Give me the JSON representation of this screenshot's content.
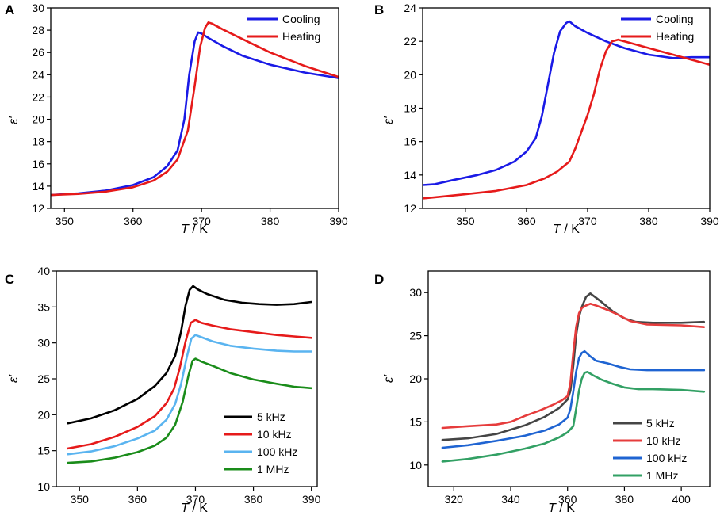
{
  "chart_data": [
    {
      "type": "line",
      "panel": "A",
      "xlabel": "T / K",
      "ylabel": "ε′",
      "xlim": [
        348,
        390
      ],
      "ylim": [
        12,
        30
      ],
      "xticks": [
        350,
        360,
        370,
        380,
        390
      ],
      "yticks": [
        12,
        14,
        16,
        18,
        20,
        22,
        24,
        26,
        28,
        30
      ],
      "legend_position": "top-right",
      "series": [
        {
          "name": "Cooling",
          "color": "#1a1ae6",
          "x": [
            348,
            352,
            356,
            360,
            363,
            365,
            366.5,
            367.5,
            368.2,
            369,
            369.5,
            370,
            371,
            373,
            376,
            380,
            385,
            390
          ],
          "y": [
            13.2,
            13.35,
            13.6,
            14.1,
            14.8,
            15.8,
            17.2,
            20,
            24,
            27,
            27.8,
            27.7,
            27.3,
            26.6,
            25.7,
            24.9,
            24.2,
            23.7
          ]
        },
        {
          "name": "Heating",
          "color": "#e61a1a",
          "x": [
            348,
            352,
            356,
            360,
            363,
            365,
            366.5,
            368,
            369,
            369.8,
            370.5,
            371,
            371.5,
            373,
            376,
            380,
            385,
            390
          ],
          "y": [
            13.2,
            13.3,
            13.5,
            13.9,
            14.5,
            15.3,
            16.4,
            19,
            23,
            26.5,
            28.2,
            28.7,
            28.6,
            28.1,
            27.2,
            26,
            24.8,
            23.8
          ]
        }
      ]
    },
    {
      "type": "line",
      "panel": "B",
      "xlabel": "T / K",
      "ylabel": "ε′",
      "xlim": [
        343,
        390
      ],
      "ylim": [
        12,
        24
      ],
      "xticks": [
        350,
        360,
        370,
        380,
        390
      ],
      "yticks": [
        12,
        14,
        16,
        18,
        20,
        22,
        24
      ],
      "legend_position": "top-right",
      "series": [
        {
          "name": "Cooling",
          "color": "#1a1ae6",
          "x": [
            343,
            345,
            348,
            352,
            355,
            358,
            360,
            361.5,
            362.5,
            363.5,
            364.5,
            365.5,
            366.5,
            367,
            368,
            370,
            373,
            376,
            380,
            384,
            387,
            390
          ],
          "y": [
            13.4,
            13.45,
            13.7,
            14.0,
            14.3,
            14.8,
            15.4,
            16.2,
            17.5,
            19.4,
            21.3,
            22.6,
            23.1,
            23.2,
            22.9,
            22.5,
            22.0,
            21.6,
            21.2,
            21.0,
            21.05,
            21.05
          ]
        },
        {
          "name": "Heating",
          "color": "#e61a1a",
          "x": [
            343,
            346,
            350,
            355,
            360,
            363,
            365,
            367,
            368,
            369,
            370,
            371,
            372,
            373,
            374,
            375,
            377,
            380,
            384,
            387,
            390
          ],
          "y": [
            12.6,
            12.7,
            12.85,
            13.05,
            13.4,
            13.8,
            14.2,
            14.8,
            15.6,
            16.6,
            17.6,
            18.8,
            20.3,
            21.4,
            22.0,
            22.1,
            21.9,
            21.6,
            21.2,
            20.9,
            20.6
          ]
        }
      ]
    },
    {
      "type": "line",
      "panel": "C",
      "xlabel": "T / K",
      "ylabel": "ε′",
      "xlim": [
        346,
        391
      ],
      "ylim": [
        10,
        40
      ],
      "xticks": [
        350,
        360,
        370,
        380,
        390
      ],
      "yticks": [
        10,
        15,
        20,
        25,
        30,
        35,
        40
      ],
      "legend_position": "bottom-right",
      "series": [
        {
          "name": "5 kHz",
          "color": "#000000",
          "x": [
            348,
            352,
            356,
            360,
            363,
            365,
            366.5,
            367.5,
            368.3,
            369,
            369.6,
            370.5,
            372,
            375,
            378,
            381,
            384,
            387,
            390
          ],
          "y": [
            18.8,
            19.5,
            20.6,
            22.2,
            24,
            25.8,
            28.2,
            31.5,
            35.2,
            37.4,
            37.9,
            37.4,
            36.8,
            36.0,
            35.6,
            35.4,
            35.3,
            35.4,
            35.7
          ]
        },
        {
          "name": "10 kHz",
          "color": "#e61a1a",
          "x": [
            348,
            352,
            356,
            360,
            363,
            365,
            366.3,
            367.3,
            368.3,
            369.2,
            370,
            371,
            373,
            376,
            380,
            384,
            387,
            390
          ],
          "y": [
            15.3,
            15.9,
            16.9,
            18.3,
            19.8,
            21.6,
            23.6,
            26.5,
            30.2,
            32.8,
            33.2,
            32.8,
            32.4,
            31.9,
            31.5,
            31.1,
            30.9,
            30.7
          ]
        },
        {
          "name": "100 kHz",
          "color": "#5ab4f0",
          "x": [
            348,
            352,
            356,
            360,
            363,
            365,
            366.5,
            367.5,
            368.5,
            369.3,
            370,
            371,
            373,
            376,
            380,
            384,
            387,
            390
          ],
          "y": [
            14.5,
            14.9,
            15.6,
            16.7,
            17.8,
            19.3,
            21.5,
            24.2,
            28.0,
            30.6,
            31.1,
            30.8,
            30.2,
            29.6,
            29.2,
            28.9,
            28.8,
            28.8
          ]
        },
        {
          "name": "1 MHz",
          "color": "#1a8c1a",
          "x": [
            348,
            352,
            356,
            360,
            363,
            365,
            366.5,
            367.8,
            368.8,
            369.5,
            370,
            371,
            373,
            376,
            380,
            384,
            387,
            390
          ],
          "y": [
            13.3,
            13.5,
            14.0,
            14.8,
            15.7,
            16.8,
            18.6,
            21.8,
            25.5,
            27.5,
            27.8,
            27.4,
            26.8,
            25.8,
            24.9,
            24.3,
            23.9,
            23.7
          ]
        }
      ]
    },
    {
      "type": "line",
      "panel": "D",
      "xlabel": "T / K",
      "ylabel": "ε′",
      "xlim": [
        311,
        410
      ],
      "ylim": [
        7.5,
        32.5
      ],
      "xticks": [
        320,
        340,
        360,
        380,
        400
      ],
      "yticks": [
        10,
        15,
        20,
        25,
        30
      ],
      "legend_position": "bottom-right",
      "series": [
        {
          "name": "5 kHz",
          "color": "#454545",
          "x": [
            316,
            325,
            335,
            345,
            352,
            357,
            360,
            361,
            362,
            363,
            364,
            365,
            366.5,
            368,
            370,
            372,
            376,
            380,
            384,
            390,
            400,
            408
          ],
          "y": [
            12.9,
            13.1,
            13.6,
            14.6,
            15.6,
            16.6,
            17.6,
            18.6,
            21.5,
            25.0,
            27.2,
            28.3,
            29.5,
            29.9,
            29.4,
            28.9,
            27.8,
            27.0,
            26.6,
            26.5,
            26.5,
            26.6
          ]
        },
        {
          "name": "10 kHz",
          "color": "#e63c3c",
          "x": [
            316,
            325,
            335,
            340,
            345,
            350,
            355,
            358,
            360,
            361,
            362,
            363,
            364,
            365,
            366.5,
            368,
            370,
            374,
            378,
            382,
            388,
            400,
            408
          ],
          "y": [
            14.3,
            14.5,
            14.7,
            15.0,
            15.7,
            16.3,
            17.0,
            17.5,
            18.0,
            19.5,
            23.0,
            26.0,
            27.6,
            28.2,
            28.5,
            28.7,
            28.5,
            28.0,
            27.4,
            26.7,
            26.3,
            26.2,
            26.0
          ]
        },
        {
          "name": "100 kHz",
          "color": "#1f64d2",
          "x": [
            316,
            325,
            335,
            345,
            352,
            357,
            360,
            361,
            362,
            363,
            364,
            365,
            366,
            368,
            370,
            374,
            378,
            382,
            388,
            400,
            408
          ],
          "y": [
            12.0,
            12.3,
            12.8,
            13.4,
            14.0,
            14.7,
            15.5,
            16.5,
            18.5,
            20.8,
            22.4,
            23.0,
            23.2,
            22.6,
            22.1,
            21.8,
            21.4,
            21.1,
            21.0,
            21.0,
            21.0
          ]
        },
        {
          "name": "1 MHz",
          "color": "#32a064",
          "x": [
            316,
            325,
            335,
            345,
            352,
            357,
            360,
            362,
            363,
            364,
            365,
            366,
            367,
            369,
            372,
            376,
            380,
            385,
            390,
            400,
            408
          ],
          "y": [
            10.4,
            10.7,
            11.2,
            11.9,
            12.5,
            13.2,
            13.8,
            14.5,
            16.5,
            18.6,
            20.0,
            20.7,
            20.8,
            20.4,
            19.9,
            19.4,
            19.0,
            18.8,
            18.8,
            18.7,
            18.5
          ]
        }
      ]
    }
  ]
}
